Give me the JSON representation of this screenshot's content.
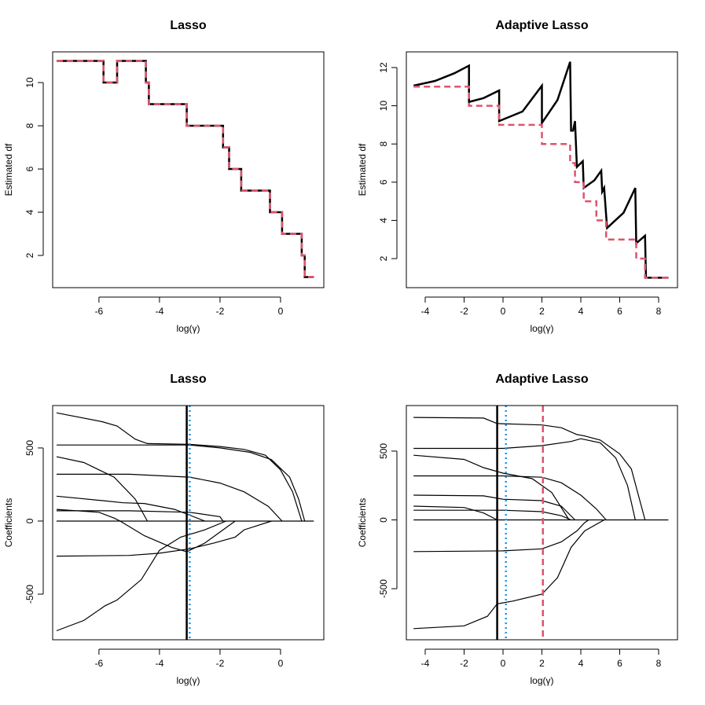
{
  "chart_data": [
    {
      "type": "line",
      "title": "Lasso",
      "xlabel": "log(γ)",
      "ylabel": "Estimated df",
      "xlim": [
        -7.53,
        1.43
      ],
      "ylim": [
        0.51,
        11.42
      ],
      "xticks": [
        -6,
        -4,
        -2,
        0
      ],
      "yticks": [
        2,
        4,
        6,
        8,
        10
      ],
      "series": [
        {
          "color": "#000000",
          "dash": "solid",
          "x": [
            -7.4,
            -5.85,
            -5.85,
            -5.4,
            -5.4,
            -4.45,
            -4.45,
            -4.35,
            -4.35,
            -3.1,
            -3.1,
            -1.9,
            -1.9,
            -1.7,
            -1.7,
            -1.3,
            -1.3,
            -0.35,
            -0.35,
            0.05,
            0.05,
            0.7,
            0.7,
            0.8,
            0.8,
            1.1
          ],
          "values": [
            11,
            11,
            10,
            10,
            11,
            11,
            10,
            10,
            9,
            9,
            8,
            8,
            7,
            7,
            6,
            6,
            5,
            5,
            4,
            4,
            3,
            3,
            2,
            2,
            1,
            1
          ]
        },
        {
          "color": "#DF536B",
          "dash": "dashed",
          "x": [
            -7.4,
            -5.85,
            -5.85,
            -5.4,
            -5.4,
            -4.45,
            -4.45,
            -4.35,
            -4.35,
            -3.1,
            -3.1,
            -1.9,
            -1.9,
            -1.7,
            -1.7,
            -1.3,
            -1.3,
            -0.35,
            -0.35,
            0.05,
            0.05,
            0.7,
            0.7,
            0.8,
            0.8,
            1.1
          ],
          "values": [
            11,
            11,
            10,
            10,
            11,
            11,
            10,
            10,
            9,
            9,
            8,
            8,
            7,
            7,
            6,
            6,
            5,
            5,
            4,
            4,
            3,
            3,
            2,
            2,
            1,
            1
          ]
        }
      ]
    },
    {
      "type": "line",
      "title": "Adaptive Lasso",
      "xlabel": "log(γ)",
      "ylabel": "Estimated df",
      "xlim": [
        -4.97,
        8.97
      ],
      "ylim": [
        0.48,
        12.82
      ],
      "xticks": [
        -4,
        -2,
        0,
        2,
        4,
        6,
        8
      ],
      "yticks": [
        2,
        4,
        6,
        8,
        10,
        12
      ],
      "series": [
        {
          "color": "#000000",
          "dash": "solid",
          "x": [
            -4.6,
            -3.5,
            -2.5,
            -1.75,
            -1.75,
            -1.0,
            -0.2,
            -0.2,
            1.0,
            2.0,
            2.0,
            2.8,
            3.45,
            3.5,
            3.6,
            3.7,
            3.8,
            4.1,
            4.15,
            4.7,
            5.05,
            5.1,
            5.2,
            5.35,
            6.2,
            6.8,
            6.85,
            7.3,
            7.35,
            8.5
          ],
          "values": [
            11.05,
            11.3,
            11.7,
            12.1,
            10.2,
            10.4,
            10.8,
            9.2,
            9.7,
            11.05,
            9.1,
            10.3,
            12.3,
            8.7,
            8.7,
            9.2,
            6.8,
            7.1,
            5.7,
            6.1,
            6.6,
            5.5,
            5.7,
            3.6,
            4.4,
            5.7,
            2.8,
            3.2,
            1,
            1
          ]
        },
        {
          "color": "#DF536B",
          "dash": "dashed",
          "x": [
            -4.6,
            -1.75,
            -1.75,
            -0.2,
            -0.2,
            2.0,
            2.0,
            3.45,
            3.45,
            3.7,
            3.7,
            4.15,
            4.15,
            4.8,
            4.8,
            5.3,
            5.3,
            6.85,
            6.85,
            7.3,
            7.3,
            8.5
          ],
          "values": [
            11,
            11,
            10,
            10,
            9,
            9,
            8,
            8,
            7,
            7,
            6,
            6,
            5,
            5,
            4,
            4,
            3,
            3,
            2,
            2,
            1,
            1
          ]
        }
      ]
    },
    {
      "type": "line",
      "title": "Lasso",
      "xlabel": "log(γ)",
      "ylabel": "Coefficients",
      "xlim": [
        -7.53,
        1.43
      ],
      "ylim": [
        -812,
        790
      ],
      "xticks": [
        -6,
        -4,
        -2,
        0
      ],
      "yticks": [
        -500,
        0,
        500
      ],
      "vlines": [
        {
          "x": -3.1,
          "color": "#000000",
          "dash": "solid"
        },
        {
          "x": -3.0,
          "color": "#2297E6",
          "dash": "dotted"
        }
      ],
      "series": [
        {
          "color": "#000000",
          "dash": "solid",
          "x": [
            -7.4,
            -5.9,
            -5.4,
            -4.8,
            -4.4,
            -3,
            -2,
            -1.2,
            -0.5,
            0,
            0.4,
            0.7
          ],
          "values": [
            740,
            680,
            650,
            560,
            530,
            525,
            510,
            490,
            450,
            350,
            200,
            0
          ]
        },
        {
          "color": "#000000",
          "dash": "solid",
          "x": [
            -7.4,
            -3,
            -2,
            -1,
            -0.3,
            0.3,
            0.6,
            0.8
          ],
          "values": [
            520,
            520,
            500,
            470,
            420,
            300,
            150,
            0
          ]
        },
        {
          "color": "#000000",
          "dash": "solid",
          "x": [
            -7.4,
            -6.5,
            -5.5,
            -4.8,
            -4.4
          ],
          "values": [
            440,
            400,
            300,
            150,
            0
          ]
        },
        {
          "color": "#000000",
          "dash": "solid",
          "x": [
            -7.4,
            -5,
            -3,
            -2,
            -1.2,
            -0.4,
            0.05
          ],
          "values": [
            320,
            320,
            300,
            260,
            200,
            100,
            0
          ]
        },
        {
          "color": "#000000",
          "dash": "solid",
          "x": [
            -7.4,
            -5.9,
            -5.2,
            -4.5,
            -3.5,
            -3,
            -2.5
          ],
          "values": [
            170,
            140,
            125,
            120,
            80,
            40,
            0
          ]
        },
        {
          "color": "#000000",
          "dash": "solid",
          "x": [
            -7.4,
            -6,
            -5.5,
            -5.3
          ],
          "values": [
            80,
            60,
            20,
            0
          ]
        },
        {
          "color": "#000000",
          "dash": "solid",
          "x": [
            -7.4,
            -5,
            -3,
            -2,
            -1.9
          ],
          "values": [
            70,
            70,
            60,
            30,
            0
          ]
        },
        {
          "color": "#000000",
          "dash": "solid",
          "x": [
            -7.4,
            1.1
          ],
          "values": [
            0,
            0
          ]
        },
        {
          "color": "#000000",
          "dash": "solid",
          "x": [
            -7.4,
            -5,
            -4,
            -3,
            -2.2,
            -1.5,
            -1.2,
            -0.3
          ],
          "values": [
            -240,
            -235,
            -220,
            -190,
            -150,
            -110,
            -60,
            0
          ]
        },
        {
          "color": "#000000",
          "dash": "solid",
          "x": [
            -7.4,
            -6.5,
            -5.8,
            -5.4,
            -4.6,
            -4.0,
            -3.3,
            -2.5,
            -1.8
          ],
          "values": [
            -750,
            -680,
            -580,
            -540,
            -400,
            -200,
            -110,
            -60,
            0
          ]
        },
        {
          "color": "#000000",
          "dash": "solid",
          "x": [
            -5.3,
            -4.5,
            -3.6,
            -3.1,
            -2.5,
            -1.5
          ],
          "values": [
            0,
            -100,
            -180,
            -210,
            -150,
            0
          ]
        }
      ]
    },
    {
      "type": "line",
      "title": "Adaptive Lasso",
      "xlabel": "log(γ)",
      "ylabel": "Coefficients",
      "xlim": [
        -4.97,
        8.97
      ],
      "ylim": [
        -871,
        831
      ],
      "xticks": [
        -4,
        -2,
        0,
        2,
        4,
        6,
        8
      ],
      "yticks": [
        -500,
        0,
        500
      ],
      "vlines": [
        {
          "x": -0.3,
          "color": "#000000",
          "dash": "solid"
        },
        {
          "x": 0.15,
          "color": "#2297E6",
          "dash": "dotted"
        },
        {
          "x": 2.05,
          "color": "#DF536B",
          "dash": "dashed"
        }
      ],
      "series": [
        {
          "color": "#000000",
          "dash": "solid",
          "x": [
            -4.6,
            -1,
            -0.3,
            2,
            3,
            3.8,
            4.2,
            5,
            6,
            6.6,
            7.3
          ],
          "values": [
            745,
            740,
            700,
            690,
            670,
            620,
            610,
            580,
            480,
            370,
            0
          ]
        },
        {
          "color": "#000000",
          "dash": "solid",
          "x": [
            -4.6,
            0,
            2,
            3.5,
            4,
            5,
            5.8,
            6.4,
            6.8
          ],
          "values": [
            520,
            520,
            540,
            570,
            590,
            560,
            450,
            250,
            0
          ]
        },
        {
          "color": "#000000",
          "dash": "solid",
          "x": [
            -4.6,
            -2,
            -1,
            0,
            1.5,
            2.5,
            3.4
          ],
          "values": [
            470,
            440,
            380,
            340,
            300,
            200,
            0
          ]
        },
        {
          "color": "#000000",
          "dash": "solid",
          "x": [
            -4.6,
            0,
            2,
            3,
            4,
            4.8,
            5.3
          ],
          "values": [
            320,
            320,
            310,
            270,
            180,
            80,
            0
          ]
        },
        {
          "color": "#000000",
          "dash": "solid",
          "x": [
            -4.6,
            -1,
            0,
            2,
            3,
            3.7
          ],
          "values": [
            180,
            175,
            150,
            140,
            100,
            0
          ]
        },
        {
          "color": "#000000",
          "dash": "solid",
          "x": [
            -4.6,
            -2,
            -1,
            -0.3
          ],
          "values": [
            100,
            90,
            50,
            0
          ]
        },
        {
          "color": "#000000",
          "dash": "solid",
          "x": [
            -4.6,
            0,
            2,
            3,
            3.5
          ],
          "values": [
            70,
            70,
            60,
            30,
            0
          ]
        },
        {
          "color": "#000000",
          "dash": "solid",
          "x": [
            -4.6,
            8.5
          ],
          "values": [
            0,
            0
          ]
        },
        {
          "color": "#000000",
          "dash": "solid",
          "x": [
            -4.6,
            0,
            2,
            3,
            3.8,
            4.2,
            4.4
          ],
          "values": [
            -230,
            -225,
            -210,
            -160,
            -80,
            -20,
            0
          ]
        },
        {
          "color": "#000000",
          "dash": "solid",
          "x": [
            -4.6,
            -2,
            -0.8,
            -0.3,
            0.5,
            2,
            2.8,
            3.5,
            4.2,
            5.2
          ],
          "values": [
            -790,
            -770,
            -700,
            -610,
            -590,
            -540,
            -420,
            -200,
            -80,
            0
          ]
        }
      ]
    }
  ]
}
